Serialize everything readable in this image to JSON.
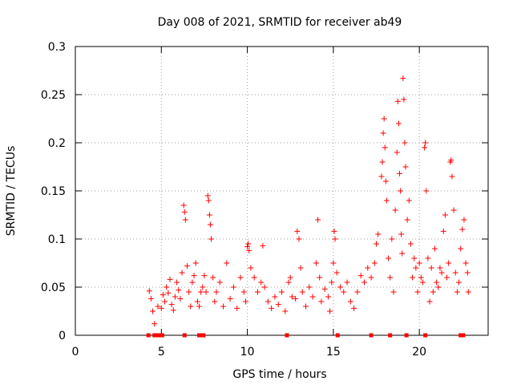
{
  "chart_data": {
    "type": "scatter",
    "title": "Day 008 of 2021, SRMTID for receiver ab49",
    "xlabel": "GPS time / hours",
    "ylabel": "SRMTID / TECUs",
    "xlim": [
      0,
      24
    ],
    "ylim": [
      0,
      0.3
    ],
    "x_ticks": [
      0,
      5,
      10,
      15,
      20
    ],
    "x_tick_labels": [
      "0",
      "5",
      "10",
      "15",
      "20"
    ],
    "y_ticks": [
      0,
      0.05,
      0.1,
      0.15,
      0.2,
      0.25,
      0.3
    ],
    "y_tick_labels": [
      "0",
      "0.05",
      "0.1",
      "0.15",
      "0.2",
      "0.25",
      "0.3"
    ],
    "grid": true,
    "marker": "+",
    "color": "#ff0000",
    "series": [
      {
        "name": "SRMTID",
        "points": [
          [
            4.3,
            0.046
          ],
          [
            4.4,
            0.038
          ],
          [
            4.5,
            0.025
          ],
          [
            4.6,
            0.012
          ],
          [
            4.8,
            0.03
          ],
          [
            5.0,
            0.028
          ],
          [
            5.1,
            0.042
          ],
          [
            5.2,
            0.035
          ],
          [
            5.3,
            0.05
          ],
          [
            5.4,
            0.044
          ],
          [
            5.5,
            0.058
          ],
          [
            5.6,
            0.032
          ],
          [
            5.7,
            0.026
          ],
          [
            5.8,
            0.04
          ],
          [
            5.9,
            0.055
          ],
          [
            6.0,
            0.047
          ],
          [
            6.1,
            0.038
          ],
          [
            6.2,
            0.065
          ],
          [
            6.3,
            0.135
          ],
          [
            6.35,
            0.128
          ],
          [
            6.4,
            0.12
          ],
          [
            6.5,
            0.072
          ],
          [
            6.6,
            0.045
          ],
          [
            6.7,
            0.03
          ],
          [
            6.8,
            0.055
          ],
          [
            6.9,
            0.062
          ],
          [
            7.0,
            0.075
          ],
          [
            7.1,
            0.035
          ],
          [
            7.2,
            0.03
          ],
          [
            7.3,
            0.045
          ],
          [
            7.4,
            0.05
          ],
          [
            7.5,
            0.062
          ],
          [
            7.6,
            0.045
          ],
          [
            7.7,
            0.145
          ],
          [
            7.75,
            0.14
          ],
          [
            7.8,
            0.125
          ],
          [
            7.85,
            0.115
          ],
          [
            7.9,
            0.1
          ],
          [
            8.0,
            0.06
          ],
          [
            8.1,
            0.035
          ],
          [
            8.2,
            0.045
          ],
          [
            8.4,
            0.055
          ],
          [
            8.6,
            0.03
          ],
          [
            8.8,
            0.075
          ],
          [
            9.0,
            0.038
          ],
          [
            9.2,
            0.05
          ],
          [
            9.4,
            0.028
          ],
          [
            9.6,
            0.06
          ],
          [
            9.8,
            0.045
          ],
          [
            9.9,
            0.035
          ],
          [
            10.0,
            0.092
          ],
          [
            10.05,
            0.095
          ],
          [
            10.1,
            0.088
          ],
          [
            10.2,
            0.07
          ],
          [
            10.4,
            0.06
          ],
          [
            10.6,
            0.045
          ],
          [
            10.8,
            0.055
          ],
          [
            10.9,
            0.093
          ],
          [
            11.0,
            0.05
          ],
          [
            11.2,
            0.035
          ],
          [
            11.4,
            0.028
          ],
          [
            11.6,
            0.04
          ],
          [
            11.8,
            0.032
          ],
          [
            12.0,
            0.045
          ],
          [
            12.2,
            0.025
          ],
          [
            12.4,
            0.055
          ],
          [
            12.5,
            0.06
          ],
          [
            12.6,
            0.04
          ],
          [
            12.8,
            0.038
          ],
          [
            12.9,
            0.108
          ],
          [
            13.0,
            0.1
          ],
          [
            13.1,
            0.07
          ],
          [
            13.2,
            0.045
          ],
          [
            13.4,
            0.03
          ],
          [
            13.6,
            0.05
          ],
          [
            13.8,
            0.04
          ],
          [
            14.0,
            0.075
          ],
          [
            14.1,
            0.12
          ],
          [
            14.2,
            0.06
          ],
          [
            14.3,
            0.035
          ],
          [
            14.5,
            0.048
          ],
          [
            14.7,
            0.04
          ],
          [
            14.8,
            0.025
          ],
          [
            14.9,
            0.055
          ],
          [
            15.0,
            0.075
          ],
          [
            15.05,
            0.108
          ],
          [
            15.1,
            0.1
          ],
          [
            15.2,
            0.065
          ],
          [
            15.4,
            0.05
          ],
          [
            15.6,
            0.045
          ],
          [
            15.8,
            0.055
          ],
          [
            16.0,
            0.035
          ],
          [
            16.2,
            0.028
          ],
          [
            16.4,
            0.045
          ],
          [
            16.6,
            0.062
          ],
          [
            16.8,
            0.055
          ],
          [
            17.0,
            0.07
          ],
          [
            17.2,
            0.06
          ],
          [
            17.4,
            0.075
          ],
          [
            17.5,
            0.095
          ],
          [
            17.6,
            0.105
          ],
          [
            17.8,
            0.165
          ],
          [
            17.85,
            0.18
          ],
          [
            17.9,
            0.21
          ],
          [
            17.95,
            0.225
          ],
          [
            18.0,
            0.195
          ],
          [
            18.05,
            0.16
          ],
          [
            18.1,
            0.14
          ],
          [
            18.2,
            0.08
          ],
          [
            18.3,
            0.06
          ],
          [
            18.4,
            0.1
          ],
          [
            18.5,
            0.045
          ],
          [
            18.6,
            0.13
          ],
          [
            18.7,
            0.19
          ],
          [
            18.75,
            0.243
          ],
          [
            18.8,
            0.22
          ],
          [
            18.85,
            0.168
          ],
          [
            18.9,
            0.15
          ],
          [
            18.95,
            0.105
          ],
          [
            19.0,
            0.085
          ],
          [
            19.05,
            0.267
          ],
          [
            19.1,
            0.245
          ],
          [
            19.15,
            0.2
          ],
          [
            19.2,
            0.175
          ],
          [
            19.3,
            0.12
          ],
          [
            19.4,
            0.14
          ],
          [
            19.5,
            0.095
          ],
          [
            19.6,
            0.06
          ],
          [
            19.7,
            0.08
          ],
          [
            19.8,
            0.07
          ],
          [
            19.9,
            0.045
          ],
          [
            20.0,
            0.075
          ],
          [
            20.1,
            0.06
          ],
          [
            20.2,
            0.055
          ],
          [
            20.3,
            0.195
          ],
          [
            20.35,
            0.2
          ],
          [
            20.4,
            0.15
          ],
          [
            20.5,
            0.08
          ],
          [
            20.6,
            0.035
          ],
          [
            20.7,
            0.07
          ],
          [
            20.8,
            0.045
          ],
          [
            20.9,
            0.09
          ],
          [
            21.0,
            0.055
          ],
          [
            21.1,
            0.05
          ],
          [
            21.2,
            0.07
          ],
          [
            21.3,
            0.065
          ],
          [
            21.4,
            0.108
          ],
          [
            21.5,
            0.125
          ],
          [
            21.6,
            0.06
          ],
          [
            21.7,
            0.075
          ],
          [
            21.8,
            0.18
          ],
          [
            21.85,
            0.182
          ],
          [
            21.9,
            0.165
          ],
          [
            22.0,
            0.13
          ],
          [
            22.1,
            0.065
          ],
          [
            22.2,
            0.045
          ],
          [
            22.3,
            0.055
          ],
          [
            22.4,
            0.09
          ],
          [
            22.5,
            0.11
          ],
          [
            22.6,
            0.12
          ],
          [
            22.7,
            0.075
          ],
          [
            22.8,
            0.065
          ],
          [
            22.85,
            0.045
          ]
        ]
      }
    ],
    "bottom_markers_x": [
      4.25,
      4.6,
      4.75,
      4.9,
      5.05,
      6.35,
      7.2,
      7.35,
      7.45,
      12.3,
      15.25,
      17.2,
      18.3,
      19.25,
      20.35,
      22.4,
      22.55
    ]
  }
}
